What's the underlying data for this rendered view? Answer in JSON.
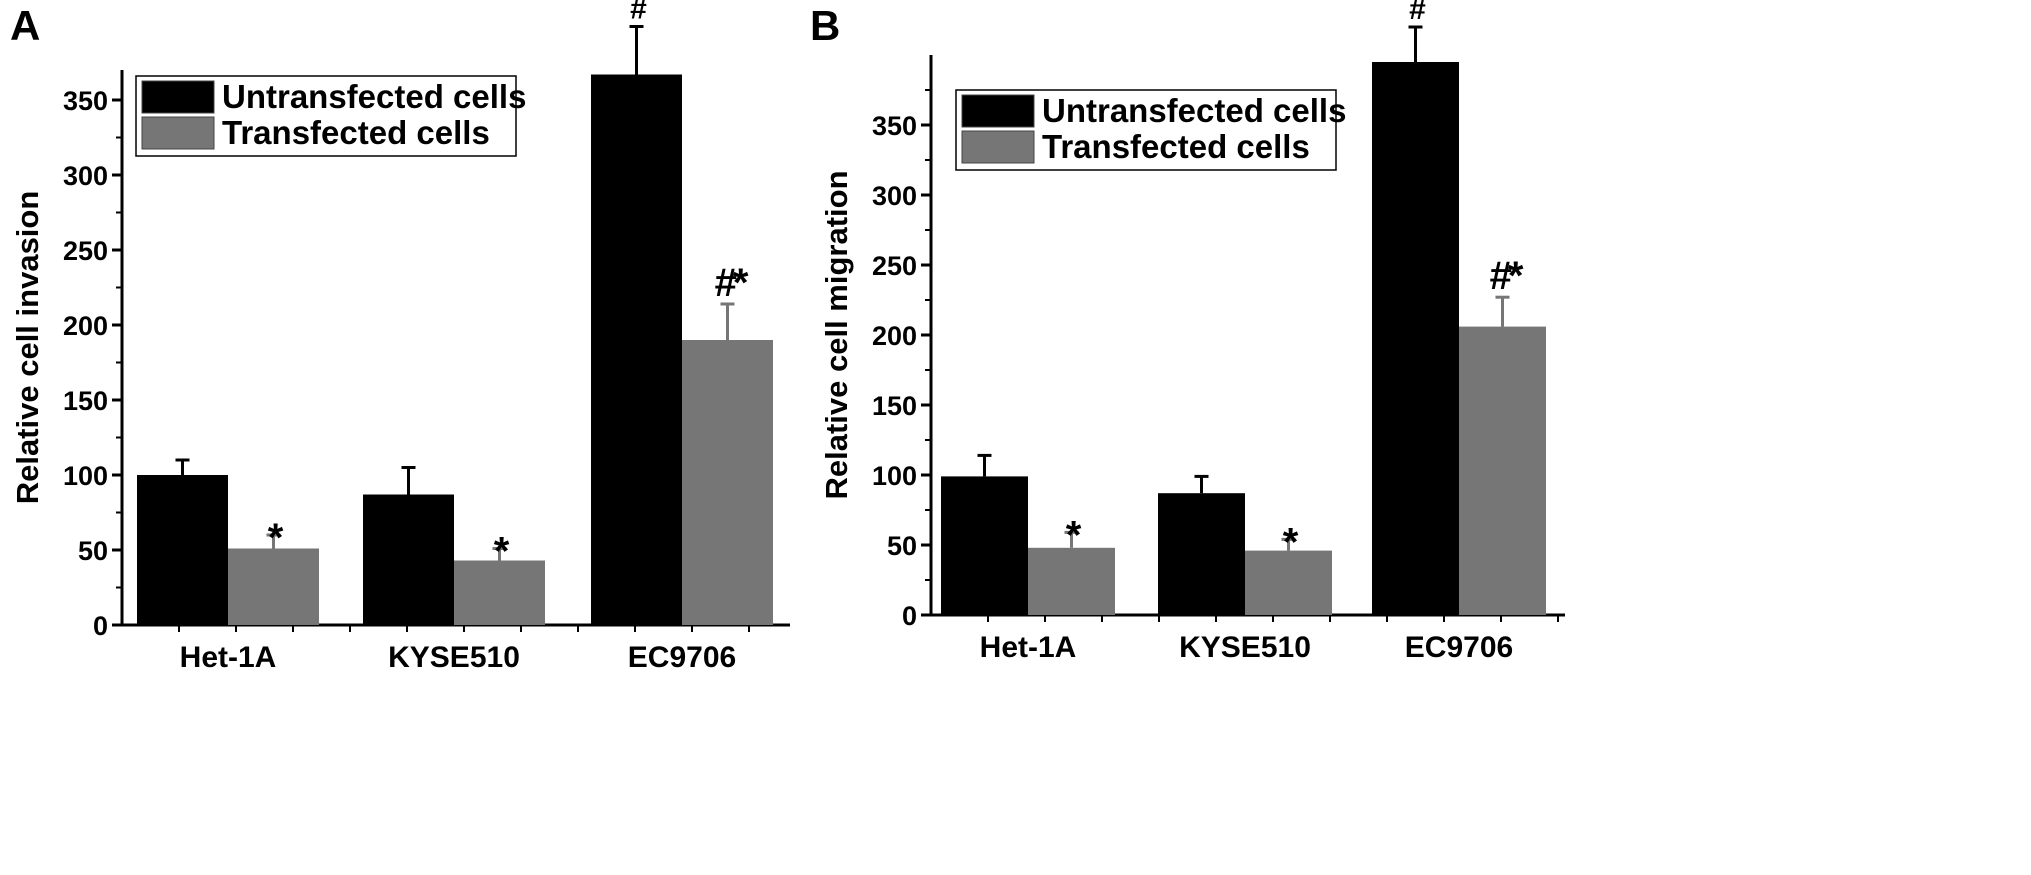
{
  "chart_data": [
    {
      "panel": "A",
      "type": "bar",
      "title": "",
      "xlabel": "",
      "ylabel": "Relative cell invasion",
      "ylim": [
        0,
        370
      ],
      "yticks": [
        0,
        50,
        100,
        150,
        200,
        250,
        300,
        350
      ],
      "categories": [
        "Het-1A",
        "KYSE510",
        "EC9706"
      ],
      "series": [
        {
          "name": "Untransfected cells",
          "color": "#000000",
          "values": [
            100,
            87,
            367
          ],
          "errors": [
            10,
            18,
            32
          ],
          "annotations": [
            "",
            "",
            "#"
          ]
        },
        {
          "name": "Transfected cells",
          "color": "#767676",
          "values": [
            51,
            43,
            190
          ],
          "errors": [
            9,
            8,
            24
          ],
          "annotations": [
            "*",
            "*",
            "#*"
          ]
        }
      ],
      "legend": "top-left",
      "grid": false
    },
    {
      "panel": "B",
      "type": "bar",
      "title": "",
      "xlabel": "",
      "ylabel": "Relative cell migration",
      "ylim": [
        0,
        400
      ],
      "yticks": [
        0,
        50,
        100,
        150,
        200,
        250,
        300,
        350
      ],
      "categories": [
        "Het-1A",
        "KYSE510",
        "EC9706"
      ],
      "series": [
        {
          "name": "Untransfected cells",
          "color": "#000000",
          "values": [
            99,
            87,
            395
          ],
          "errors": [
            15,
            12,
            25
          ],
          "annotations": [
            "",
            "",
            "#"
          ]
        },
        {
          "name": "Transfected cells",
          "color": "#767676",
          "values": [
            48,
            46,
            206
          ],
          "errors": [
            11,
            8,
            21
          ],
          "annotations": [
            "*",
            "*",
            "#*"
          ]
        }
      ],
      "legend": "top-left",
      "grid": false
    }
  ]
}
